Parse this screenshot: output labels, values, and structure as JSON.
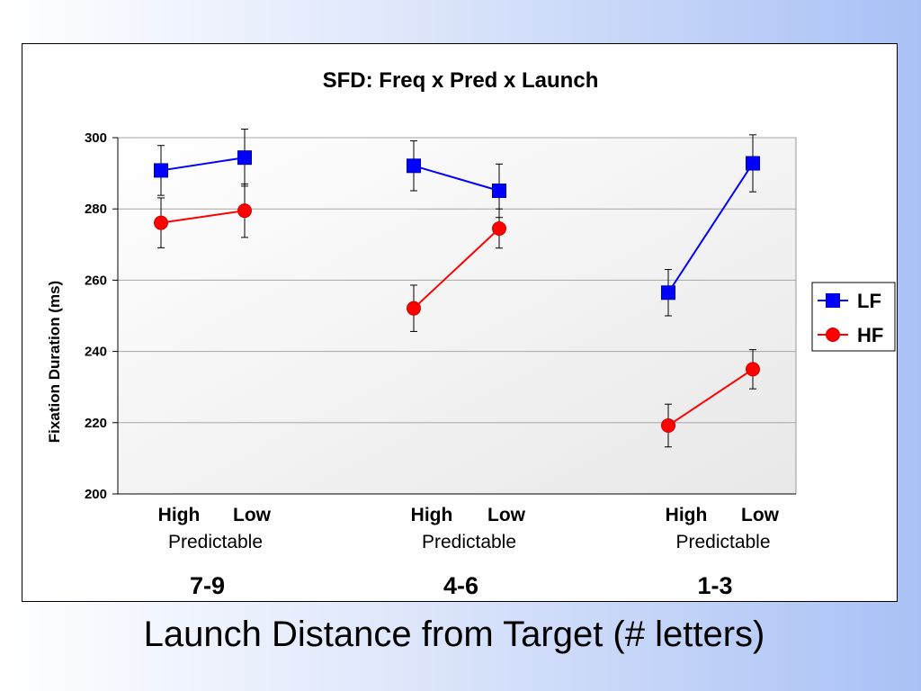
{
  "slide": {
    "caption": "Launch Distance from Target (# letters)"
  },
  "chart_data": {
    "type": "line",
    "title": "SFD:  Freq x Pred x Launch",
    "ylabel": "Fixation Duration (ms)",
    "xlabel": "",
    "ylim": [
      200,
      300
    ],
    "yticks": [
      200,
      220,
      240,
      260,
      280,
      300
    ],
    "grid": true,
    "legend_position": "right",
    "groups": [
      {
        "label": "7-9",
        "levels": [
          "High",
          "Low"
        ],
        "sublabel": "Predictable"
      },
      {
        "label": "4-6",
        "levels": [
          "High",
          "Low"
        ],
        "sublabel": "Predictable"
      },
      {
        "label": "1-3",
        "levels": [
          "High",
          "Low"
        ],
        "sublabel": "Predictable"
      }
    ],
    "series": [
      {
        "name": "LF",
        "color": "#0000ff",
        "marker": "square",
        "values": [
          [
            290.8,
            294.4
          ],
          [
            292.1,
            285.1
          ],
          [
            256.5,
            292.8
          ]
        ],
        "errors": [
          [
            7,
            8
          ],
          [
            7,
            7.5
          ],
          [
            6.5,
            8
          ]
        ]
      },
      {
        "name": "HF",
        "color": "#ff0000",
        "marker": "circle",
        "values": [
          [
            276.1,
            279.5
          ],
          [
            252.1,
            274.5
          ],
          [
            219.2,
            235.0
          ]
        ],
        "errors": [
          [
            7,
            7.5
          ],
          [
            6.5,
            5.5
          ],
          [
            6,
            5.5
          ]
        ]
      }
    ]
  }
}
